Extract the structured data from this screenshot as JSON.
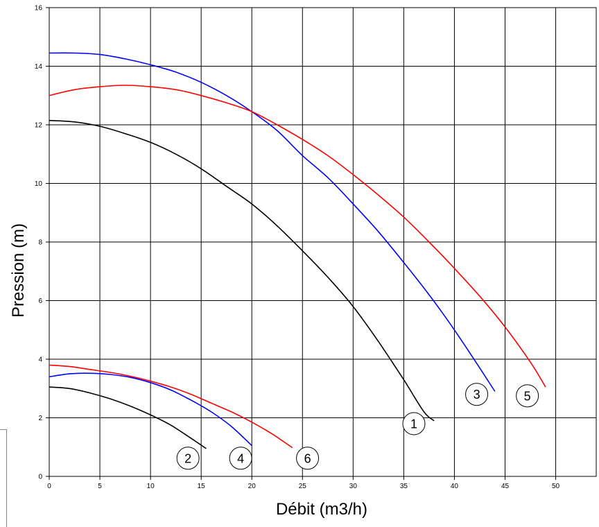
{
  "chart_data": {
    "type": "line",
    "title": "",
    "xlabel": "Débit (m3/h)",
    "ylabel": "Pression (m)",
    "xlim": [
      0,
      54
    ],
    "ylim": [
      0,
      16
    ],
    "x_ticks": [
      "0",
      "5",
      "10",
      "15",
      "20",
      "25",
      "30",
      "35",
      "40",
      "45",
      "50"
    ],
    "y_ticks": [
      "0",
      "2",
      "4",
      "6",
      "8",
      "10",
      "12",
      "14",
      "16"
    ],
    "grid": true,
    "series": [
      {
        "name": "1",
        "color": "#000000",
        "x": [
          0,
          2.5,
          5,
          7.5,
          10,
          12.5,
          15,
          17.5,
          20,
          22.5,
          25,
          27.5,
          30,
          32.5,
          35,
          37,
          38
        ],
        "y": [
          12.15,
          12.1,
          11.95,
          11.7,
          11.4,
          11.0,
          10.5,
          9.9,
          9.3,
          8.55,
          7.7,
          6.8,
          5.8,
          4.6,
          3.3,
          2.2,
          1.9
        ]
      },
      {
        "name": "2",
        "color": "#000000",
        "x": [
          0,
          2,
          4,
          6,
          8,
          10,
          12,
          14,
          15.5
        ],
        "y": [
          3.05,
          3.0,
          2.85,
          2.65,
          2.4,
          2.1,
          1.75,
          1.3,
          0.95
        ]
      },
      {
        "name": "3",
        "color": "#0000ff",
        "x": [
          0,
          2.5,
          5,
          7.5,
          10,
          12.5,
          15,
          17.5,
          20,
          22.5,
          25,
          27.5,
          30,
          32.5,
          35,
          37.5,
          40,
          42.5,
          44
        ],
        "y": [
          14.45,
          14.45,
          14.4,
          14.25,
          14.05,
          13.8,
          13.45,
          13.0,
          12.45,
          11.8,
          10.95,
          10.2,
          9.3,
          8.35,
          7.3,
          6.2,
          5.0,
          3.7,
          2.9
        ]
      },
      {
        "name": "4",
        "color": "#0000ff",
        "x": [
          0,
          2,
          4,
          6,
          8,
          10,
          12,
          14,
          16,
          18,
          20
        ],
        "y": [
          3.4,
          3.5,
          3.52,
          3.48,
          3.38,
          3.2,
          2.95,
          2.6,
          2.2,
          1.7,
          1.05
        ]
      },
      {
        "name": "5",
        "color": "#ff0000",
        "x": [
          0,
          2.5,
          5,
          7.5,
          10,
          12.5,
          15,
          17.5,
          20,
          22.5,
          25,
          27.5,
          30,
          32.5,
          35,
          37.5,
          40,
          42.5,
          45,
          47.5,
          49
        ],
        "y": [
          13.0,
          13.2,
          13.3,
          13.35,
          13.3,
          13.2,
          13.0,
          12.75,
          12.45,
          12.0,
          11.5,
          10.95,
          10.3,
          9.6,
          8.85,
          8.0,
          7.1,
          6.15,
          5.1,
          3.9,
          3.05
        ]
      },
      {
        "name": "6",
        "color": "#ff0000",
        "x": [
          0,
          2,
          4,
          6,
          8,
          10,
          12,
          14,
          16,
          18,
          20,
          22,
          24
        ],
        "y": [
          3.8,
          3.75,
          3.65,
          3.55,
          3.42,
          3.25,
          3.05,
          2.8,
          2.5,
          2.2,
          1.85,
          1.45,
          0.98
        ]
      }
    ],
    "curve_labels": [
      {
        "text": "1",
        "x": 36.0,
        "y": 1.8
      },
      {
        "text": "2",
        "x": 13.7,
        "y": 0.62
      },
      {
        "text": "3",
        "x": 42.2,
        "y": 2.8
      },
      {
        "text": "4",
        "x": 18.9,
        "y": 0.62
      },
      {
        "text": "5",
        "x": 47.2,
        "y": 2.75
      },
      {
        "text": "6",
        "x": 25.5,
        "y": 0.62
      }
    ]
  }
}
